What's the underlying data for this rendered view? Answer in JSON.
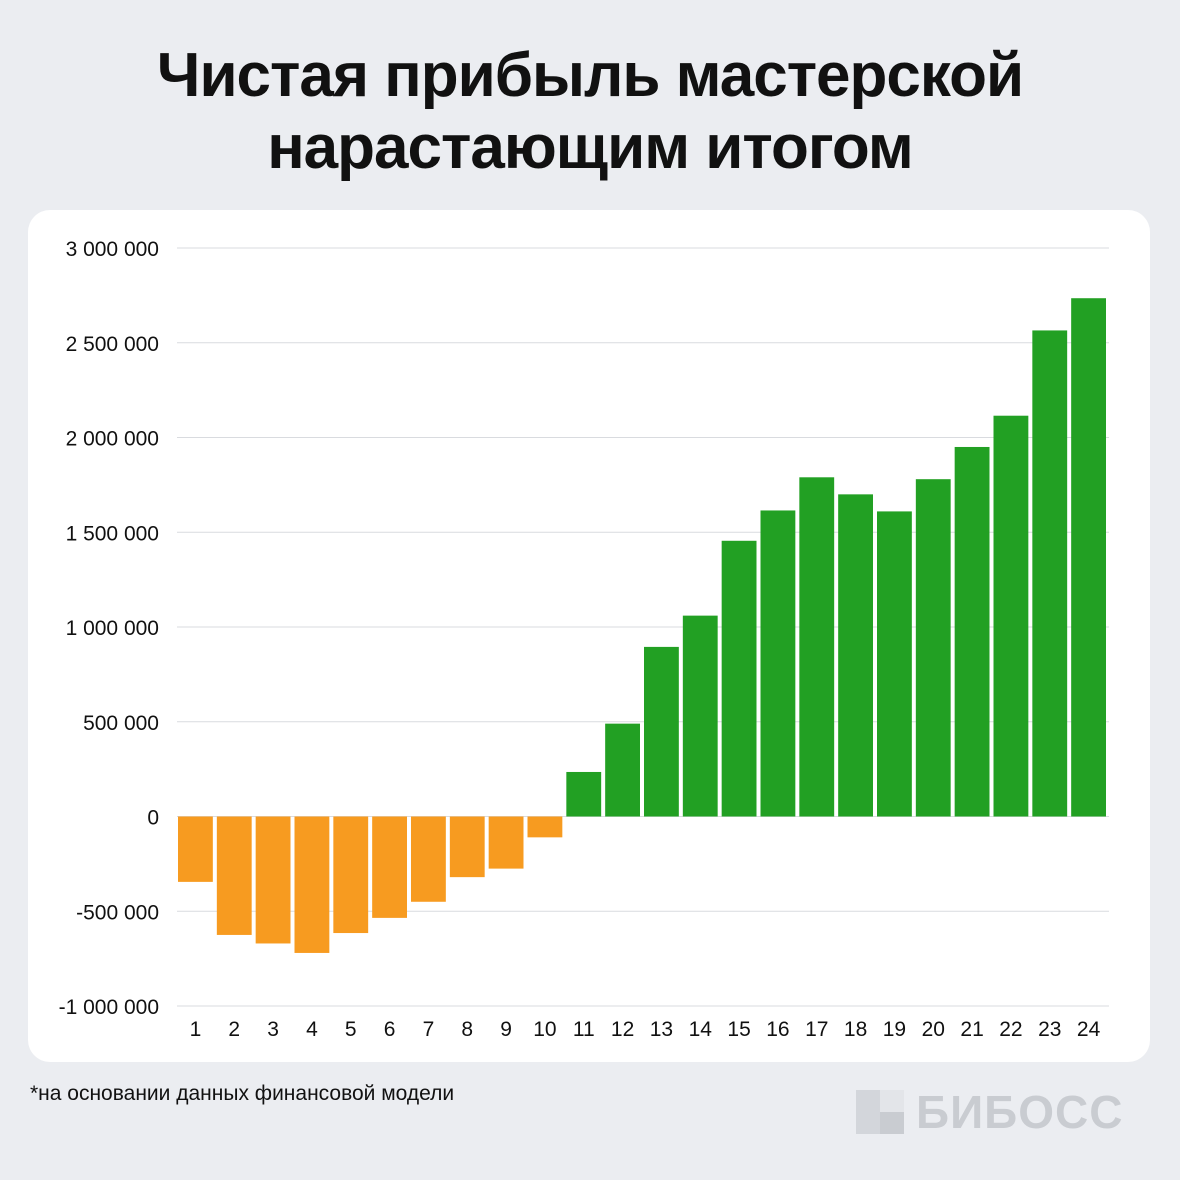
{
  "title": {
    "line1": "Чистая прибыль мастерской",
    "line2": "нарастающим итогом"
  },
  "footnote": "*на основании данных финансовой модели",
  "logo": {
    "text": "БИБОСС",
    "icon": "bibosс-logo-mark"
  },
  "colors": {
    "negative": "#f79b20",
    "positive": "#22a023",
    "grid": "#d9dbdf",
    "background": "#ebedf1",
    "card": "#ffffff"
  },
  "chart_data": {
    "type": "bar",
    "title": "Чистая прибыль мастерской нарастающим итогом",
    "xlabel": "",
    "ylabel": "",
    "ylim": [
      -1000000,
      3000000
    ],
    "yticks": [
      3000000,
      2500000,
      2000000,
      1500000,
      1000000,
      500000,
      0,
      -500000,
      -1000000
    ],
    "ytick_labels": [
      "3 000 000",
      "2 500 000",
      "2 000 000",
      "1 500 000",
      "1 000 000",
      "500 000",
      "0",
      "-500 000",
      "-1 000 000"
    ],
    "grid": true,
    "legend": "none",
    "categories": [
      "1",
      "2",
      "3",
      "4",
      "5",
      "6",
      "7",
      "8",
      "9",
      "10",
      "11",
      "12",
      "13",
      "14",
      "15",
      "16",
      "17",
      "18",
      "19",
      "20",
      "21",
      "22",
      "23",
      "24"
    ],
    "values": [
      -345000,
      -625000,
      -670000,
      -720000,
      -615000,
      -535000,
      -450000,
      -320000,
      -275000,
      -110000,
      235000,
      490000,
      895000,
      1060000,
      1455000,
      1615000,
      1790000,
      1700000,
      1610000,
      1780000,
      1950000,
      2115000,
      2565000,
      2735000
    ]
  }
}
